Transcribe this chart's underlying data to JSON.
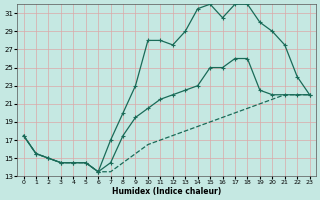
{
  "xlabel": "Humidex (Indice chaleur)",
  "bg_color": "#c5e8e2",
  "grid_color": "#dba8a8",
  "line_color": "#1a6b58",
  "xlim": [
    -0.5,
    23.5
  ],
  "ylim": [
    13,
    32
  ],
  "yticks": [
    13,
    15,
    17,
    19,
    21,
    23,
    25,
    27,
    29,
    31
  ],
  "xticks": [
    0,
    1,
    2,
    3,
    4,
    5,
    6,
    7,
    8,
    9,
    10,
    11,
    12,
    13,
    14,
    15,
    16,
    17,
    18,
    19,
    20,
    21,
    22,
    23
  ],
  "line_upper_x": [
    0,
    1,
    2,
    3,
    4,
    5,
    6,
    7,
    8,
    9,
    10,
    11,
    12,
    13,
    14,
    15,
    16,
    17,
    18,
    19,
    20,
    21,
    22,
    23
  ],
  "line_upper_y": [
    17.5,
    15.5,
    15.0,
    14.5,
    14.5,
    14.5,
    13.5,
    17.0,
    20.0,
    23.0,
    28.0,
    28.0,
    27.5,
    29.0,
    31.5,
    32.0,
    30.5,
    32.0,
    32.0,
    30.0,
    29.0,
    27.5,
    24.0,
    22.0
  ],
  "line_mid_x": [
    0,
    1,
    2,
    3,
    4,
    5,
    6,
    7,
    8,
    9,
    10,
    11,
    12,
    13,
    14,
    15,
    16,
    17,
    18,
    19,
    20,
    21,
    22,
    23
  ],
  "line_mid_y": [
    17.5,
    15.5,
    15.0,
    14.5,
    14.5,
    14.5,
    13.5,
    14.5,
    17.5,
    19.5,
    20.5,
    21.5,
    22.0,
    22.5,
    23.0,
    25.0,
    25.0,
    26.0,
    26.0,
    22.5,
    22.0,
    22.0,
    22.0,
    22.0
  ],
  "line_low_x": [
    0,
    1,
    2,
    3,
    4,
    5,
    6,
    7,
    8,
    9,
    10,
    11,
    12,
    13,
    14,
    15,
    16,
    17,
    18,
    19,
    20,
    21,
    22,
    23
  ],
  "line_low_y": [
    17.5,
    15.5,
    15.0,
    14.5,
    14.5,
    14.5,
    13.5,
    13.5,
    14.5,
    15.5,
    16.5,
    17.0,
    17.5,
    18.0,
    18.5,
    19.0,
    19.5,
    20.0,
    20.5,
    21.0,
    21.5,
    22.0,
    22.0,
    22.0
  ]
}
